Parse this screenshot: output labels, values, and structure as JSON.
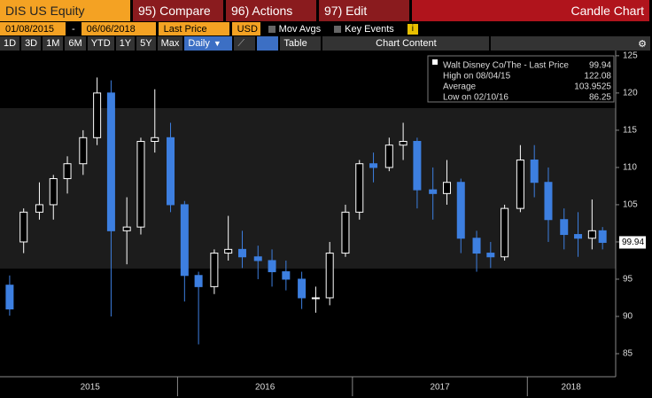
{
  "toolbar": {
    "security": "DIS US Equity",
    "tabs": [
      "95) Compare",
      "96) Actions",
      "97) Edit"
    ],
    "view": "Candle Chart",
    "start_date": "01/08/2015",
    "dash": "-",
    "end_date": "06/06/2018",
    "field": "Last Price",
    "currency": "USD",
    "mov_avgs": "Mov Avgs",
    "key_events": "Key Events",
    "periods": [
      "1D",
      "3D",
      "1M",
      "6M",
      "YTD",
      "1Y",
      "5Y",
      "Max"
    ],
    "frequency": "Daily",
    "table": "Table",
    "chart_content": "Chart Content"
  },
  "chart_data": {
    "type": "candlestick",
    "xlim": [
      2015.0,
      2018.5
    ],
    "ylim": [
      82.5,
      125.7
    ],
    "yticks": [
      85,
      90,
      95,
      100,
      105,
      110,
      115,
      120,
      125
    ],
    "xticks": [
      {
        "value": 2015.5,
        "label": "2015"
      },
      {
        "value": 2016.5,
        "label": "2016"
      },
      {
        "value": 2017.5,
        "label": "2017"
      },
      {
        "value": 2018.25,
        "label": "2018"
      }
    ],
    "year_boundaries": [
      2016,
      2017,
      2018
    ],
    "up_color": "#ffffff",
    "down_color": "#3d7fe0",
    "x": [
      2015.04,
      2015.12,
      2015.21,
      2015.29,
      2015.37,
      2015.46,
      2015.54,
      2015.62,
      2015.71,
      2015.79,
      2015.87,
      2015.96,
      2016.04,
      2016.12,
      2016.21,
      2016.29,
      2016.37,
      2016.46,
      2016.54,
      2016.62,
      2016.71,
      2016.79,
      2016.87,
      2016.96,
      2017.04,
      2017.12,
      2017.21,
      2017.29,
      2017.37,
      2017.46,
      2017.54,
      2017.62,
      2017.71,
      2017.79,
      2017.87,
      2017.96,
      2018.04,
      2018.12,
      2018.21,
      2018.29,
      2018.37,
      2018.43
    ],
    "open": [
      94.2,
      100,
      104,
      105,
      108.5,
      110.5,
      114,
      120,
      101.5,
      102,
      113.5,
      114,
      105,
      95.5,
      94,
      98.5,
      99,
      98,
      97.5,
      96,
      95,
      92.5,
      92.5,
      98.5,
      104,
      110.5,
      110,
      113,
      113.5,
      107,
      106.5,
      108,
      100.5,
      98.5,
      98,
      104.5,
      111,
      108,
      103,
      101,
      100.5,
      101.5
    ],
    "high": [
      95.5,
      104.5,
      108,
      109,
      111.5,
      115,
      122.08,
      121.7,
      106,
      114,
      120.5,
      116,
      105.5,
      96,
      99,
      103.5,
      101.5,
      99.5,
      99,
      97.5,
      96,
      94,
      100,
      105,
      111,
      112,
      114,
      116,
      114,
      110,
      111,
      108.5,
      101.5,
      100,
      105,
      113,
      113,
      110,
      104.5,
      104,
      105.7,
      102
    ],
    "low": [
      90.1,
      98.5,
      103,
      103,
      106.5,
      109,
      113,
      90,
      97,
      101,
      112,
      104,
      92,
      86.25,
      93,
      97.5,
      96.5,
      95,
      94,
      93.5,
      91,
      90.5,
      91.5,
      98,
      103,
      108,
      109.5,
      111,
      104.5,
      103,
      105,
      98.5,
      96,
      96.5,
      97.5,
      104,
      106,
      100,
      99,
      98,
      99,
      99
    ],
    "close": [
      91,
      104,
      105,
      108.5,
      110.5,
      114,
      120,
      101.5,
      102,
      113.5,
      114,
      105,
      95.5,
      94,
      98.5,
      99,
      98,
      97.5,
      96,
      95,
      92.5,
      92.5,
      98.5,
      104,
      110.5,
      110,
      113,
      113.5,
      107,
      106.5,
      108,
      100.5,
      98.5,
      98,
      104.5,
      111,
      108,
      103,
      101,
      100.5,
      101.5,
      99.94
    ],
    "legend": {
      "series_name": "Walt Disney Co/The - Last Price",
      "last_price": 99.94,
      "high_label": "High on 08/04/15",
      "high": 122.08,
      "average_label": "Average",
      "average": 103.9525,
      "low_label": "Low on 02/10/16",
      "low": 86.25
    }
  }
}
